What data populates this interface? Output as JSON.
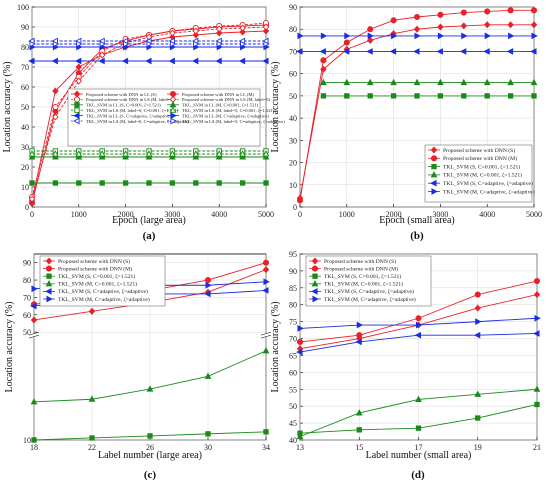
{
  "figure": {
    "panels": [
      {
        "id": "a",
        "label_text": "(a)"
      },
      {
        "id": "b",
        "label_text": "(b)"
      },
      {
        "id": "c",
        "label_text": "(c)"
      },
      {
        "id": "d",
        "label_text": "(d)"
      }
    ]
  },
  "chart_data": [
    {
      "id": "a",
      "type": "line",
      "xlabel": "Epoch (large area)",
      "ylabel": "Location accuracy (%)",
      "xlim": [
        0,
        5000
      ],
      "ylim": [
        0,
        100
      ],
      "xticks": [
        "0",
        "1000",
        "2000",
        "3000",
        "4000",
        "5000"
      ],
      "yticks": [
        "0",
        "10",
        "20",
        "30",
        "40",
        "50",
        "60",
        "70",
        "80",
        "90",
        "100"
      ],
      "grid": true,
      "legend_position": "lower-center",
      "series": [
        {
          "name": "Proposed scheme with DNN in LL (S)",
          "color": "#e8222a",
          "marker": "diamond",
          "dash": false,
          "x": [
            0,
            500,
            1000,
            1500,
            2000,
            2500,
            3000,
            3500,
            4000,
            4500,
            5000
          ],
          "y": [
            3,
            58,
            70,
            76,
            80,
            83,
            85,
            86,
            87,
            87.5,
            88
          ]
        },
        {
          "name": "Proposed scheme with DNN in LL (M)",
          "color": "#e8222a",
          "marker": "circle",
          "dash": false,
          "x": [
            0,
            500,
            1000,
            1500,
            2000,
            2500,
            3000,
            3500,
            4000,
            4500,
            5000
          ],
          "y": [
            2,
            48,
            67,
            79,
            83,
            86,
            88,
            89,
            90,
            90.5,
            91
          ]
        },
        {
          "name": "Proposed scheme with DNN in LS (M, label=0)",
          "color": "#e8222a",
          "marker": "circle-open",
          "dash": true,
          "x": [
            0,
            500,
            1000,
            1500,
            2000,
            2500,
            3000,
            3500,
            4000,
            4500,
            5000
          ],
          "y": [
            5,
            50,
            65,
            78,
            84,
            86,
            88,
            89.5,
            90.5,
            91,
            92
          ]
        },
        {
          "name": "Proposed scheme with DNN in LS (M, label=5)",
          "color": "#e8222a",
          "marker": "diamond-open",
          "dash": true,
          "x": [
            0,
            500,
            1000,
            1500,
            2000,
            2500,
            3000,
            3500,
            4000,
            4500,
            5000
          ],
          "y": [
            4,
            45,
            63,
            76,
            82,
            85,
            87,
            88,
            89,
            89.5,
            90
          ]
        },
        {
          "name": "TKL_SVM in LL (S, C=0.001, ζ=1.521)",
          "color": "#1a8a1a",
          "marker": "square",
          "dash": false,
          "x": [
            0,
            500,
            1000,
            1500,
            2000,
            2500,
            3000,
            3500,
            4000,
            4500,
            5000
          ],
          "y": [
            12,
            12,
            12,
            12,
            12,
            12,
            12,
            12,
            12,
            12,
            12
          ]
        },
        {
          "name": "TKL_SVM in LL (M, C=0.001, ζ=1.521)",
          "color": "#1a8a1a",
          "marker": "triangle",
          "dash": false,
          "x": [
            0,
            500,
            1000,
            1500,
            2000,
            2500,
            3000,
            3500,
            4000,
            4500,
            5000
          ],
          "y": [
            25,
            25,
            25,
            25,
            25,
            25,
            25,
            25,
            25,
            25,
            25
          ]
        },
        {
          "name": "TKL_SVM in LS (M, label=0, C=0.001, ζ=1.521)",
          "color": "#1a8a1a",
          "marker": "square-open",
          "dash": true,
          "x": [
            0,
            500,
            1000,
            1500,
            2000,
            2500,
            3000,
            3500,
            4000,
            4500,
            5000
          ],
          "y": [
            28,
            28,
            28,
            28,
            28,
            28,
            28,
            28,
            28,
            28,
            28
          ]
        },
        {
          "name": "TKL_SVM in LS (M, label=5, C=0.001, ζ=1.521)",
          "color": "#1a8a1a",
          "marker": "triangle-open",
          "dash": true,
          "x": [
            0,
            500,
            1000,
            1500,
            2000,
            2500,
            3000,
            3500,
            4000,
            4500,
            5000
          ],
          "y": [
            26.5,
            26.5,
            26.5,
            26.5,
            26.5,
            26.5,
            26.5,
            26.5,
            26.5,
            26.5,
            26.5
          ]
        },
        {
          "name": "TKL_SVM in LL (S, C=adaptive, ζ=adaptive)",
          "color": "#1a2ee0",
          "marker": "tri-left",
          "dash": false,
          "x": [
            0,
            500,
            1000,
            1500,
            2000,
            2500,
            3000,
            3500,
            4000,
            4500,
            5000
          ],
          "y": [
            73,
            73,
            73,
            73,
            73,
            73,
            73,
            73,
            73,
            73,
            73
          ]
        },
        {
          "name": "TKL_SVM in LL (M, C=adaptive, ζ=adaptive)",
          "color": "#1a2ee0",
          "marker": "tri-right",
          "dash": false,
          "x": [
            0,
            500,
            1000,
            1500,
            2000,
            2500,
            3000,
            3500,
            4000,
            4500,
            5000
          ],
          "y": [
            80,
            80,
            80,
            80,
            80,
            80,
            80,
            80,
            80,
            80,
            80
          ]
        },
        {
          "name": "TKL_SVM in LS (M, label=0, C=adaptive, ζ=adaptive)",
          "color": "#1a2ee0",
          "marker": "tri-left-open",
          "dash": true,
          "x": [
            0,
            500,
            1000,
            1500,
            2000,
            2500,
            3000,
            3500,
            4000,
            4500,
            5000
          ],
          "y": [
            83,
            83,
            83,
            83,
            83,
            83,
            83,
            83,
            83,
            83,
            83
          ]
        },
        {
          "name": "TKL_SVM in LS (M, label=5, C=adaptive, ζ=adaptive)",
          "color": "#1a2ee0",
          "marker": "tri-right-open",
          "dash": true,
          "x": [
            0,
            500,
            1000,
            1500,
            2000,
            2500,
            3000,
            3500,
            4000,
            4500,
            5000
          ],
          "y": [
            81.5,
            81.5,
            81.5,
            81.5,
            81.5,
            81.5,
            81.5,
            81.5,
            81.5,
            81.5,
            81.5
          ]
        }
      ]
    },
    {
      "id": "b",
      "type": "line",
      "xlabel": "Epoch (small area)",
      "ylabel": "Location accuracy (%)",
      "xlim": [
        0,
        5000
      ],
      "ylim": [
        0,
        90
      ],
      "xticks": [
        "0",
        "1000",
        "2000",
        "3000",
        "4000",
        "5000"
      ],
      "yticks": [
        "0",
        "10",
        "20",
        "30",
        "40",
        "50",
        "60",
        "70",
        "80",
        "90"
      ],
      "grid": true,
      "legend_position": "lower-right",
      "series": [
        {
          "name": "Proposed scheme with DNN (S)",
          "color": "#e8222a",
          "marker": "diamond",
          "dash": false,
          "x": [
            0,
            500,
            1000,
            1500,
            2000,
            2500,
            3000,
            3500,
            4000,
            4500,
            5000
          ],
          "y": [
            4,
            62,
            71,
            75,
            78,
            80,
            81,
            81.5,
            82,
            82,
            82
          ]
        },
        {
          "name": "Proposed scheme with DNN (M)",
          "color": "#e8222a",
          "marker": "circle",
          "dash": false,
          "x": [
            0,
            500,
            1000,
            1500,
            2000,
            2500,
            3000,
            3500,
            4000,
            4500,
            5000
          ],
          "y": [
            3,
            66,
            74,
            80,
            84,
            85.5,
            86.5,
            87.5,
            88,
            88.5,
            88.5
          ]
        },
        {
          "name": "TKL_SVM (S, C=0.001, ζ=1.521)",
          "color": "#1a8a1a",
          "marker": "square",
          "dash": false,
          "x": [
            500,
            1000,
            1500,
            2000,
            2500,
            3000,
            3500,
            4000,
            4500,
            5000
          ],
          "y": [
            50,
            50,
            50,
            50,
            50,
            50,
            50,
            50,
            50,
            50
          ]
        },
        {
          "name": "TKL_SVM (M, C=0.001, ζ=1.521)",
          "color": "#1a8a1a",
          "marker": "triangle",
          "dash": false,
          "x": [
            500,
            1000,
            1500,
            2000,
            2500,
            3000,
            3500,
            4000,
            4500,
            5000
          ],
          "y": [
            56,
            56,
            56,
            56,
            56,
            56,
            56,
            56,
            56,
            56
          ]
        },
        {
          "name": "TKL_SVM (S, C=adaptive, ζ=adaptive)",
          "color": "#1a2ee0",
          "marker": "tri-left",
          "dash": false,
          "x": [
            0,
            500,
            1000,
            1500,
            2000,
            2500,
            3000,
            3500,
            4000,
            4500,
            5000
          ],
          "y": [
            70,
            70,
            70,
            70,
            70,
            70,
            70,
            70,
            70,
            70,
            70
          ]
        },
        {
          "name": "TKL_SVM (M, C=adaptive, ζ=adaptive)",
          "color": "#1a2ee0",
          "marker": "tri-right",
          "dash": false,
          "x": [
            0,
            500,
            1000,
            1500,
            2000,
            2500,
            3000,
            3500,
            4000,
            4500,
            5000
          ],
          "y": [
            77,
            77,
            77,
            77,
            77,
            77,
            77,
            77,
            77,
            77,
            77
          ]
        }
      ]
    },
    {
      "id": "c",
      "type": "line",
      "xlabel": "Label number (large area)",
      "ylabel": "Location accuracy (%)",
      "xlim": [
        18,
        34
      ],
      "ylim": [
        10,
        95
      ],
      "axis_break": {
        "at": 50
      },
      "xticks": [
        "18",
        "22",
        "26",
        "30",
        "34"
      ],
      "yticks": [
        "10",
        "50",
        "60",
        "70",
        "80",
        "90"
      ],
      "grid": true,
      "legend_position": "top-left",
      "series": [
        {
          "name": "Proposed scheme with DNN (S)",
          "color": "#e8222a",
          "marker": "diamond",
          "dash": false,
          "x": [
            18,
            22,
            26,
            30,
            34
          ],
          "y": [
            57,
            62,
            67,
            73,
            86
          ]
        },
        {
          "name": "Proposed scheme with DNN (M)",
          "color": "#e8222a",
          "marker": "circle",
          "dash": false,
          "x": [
            18,
            22,
            26,
            30,
            34
          ],
          "y": [
            66,
            70,
            74,
            80,
            90
          ]
        },
        {
          "name": "TKL_SVM (S, C=0.001, ζ=1.521)",
          "color": "#1a8a1a",
          "marker": "square",
          "dash": false,
          "x": [
            18,
            22,
            26,
            30,
            34
          ],
          "y": [
            10,
            10.8,
            11.6,
            12.4,
            13.2
          ]
        },
        {
          "name": "TKL_SVM (M, C=0.001, ζ=1.521)",
          "color": "#1a8a1a",
          "marker": "triangle",
          "dash": false,
          "x": [
            18,
            22,
            26,
            30,
            34
          ],
          "y": [
            25,
            26,
            30,
            35,
            45
          ]
        },
        {
          "name": "TKL_SVM (S, C=adaptive, ζ=adaptive)",
          "color": "#1a2ee0",
          "marker": "tri-left",
          "dash": false,
          "x": [
            18,
            22,
            26,
            30,
            34
          ],
          "y": [
            65,
            69,
            72,
            72,
            74
          ]
        },
        {
          "name": "TKL_SVM (M, C=adaptive, ζ=adaptive)",
          "color": "#1a2ee0",
          "marker": "tri-right",
          "dash": false,
          "x": [
            18,
            22,
            26,
            30,
            34
          ],
          "y": [
            75,
            76,
            77,
            77,
            79
          ]
        }
      ]
    },
    {
      "id": "d",
      "type": "line",
      "xlabel": "Label number (small area)",
      "ylabel": "Location accuracy (%)",
      "xlim": [
        13,
        21
      ],
      "ylim": [
        40,
        95
      ],
      "xticks": [
        "13",
        "15",
        "17",
        "19",
        "21"
      ],
      "yticks": [
        "40",
        "45",
        "50",
        "55",
        "60",
        "65",
        "70",
        "75",
        "80",
        "85",
        "90",
        "95"
      ],
      "grid": true,
      "legend_position": "top-left",
      "series": [
        {
          "name": "Proposed scheme with DNN (S)",
          "color": "#e8222a",
          "marker": "diamond",
          "dash": false,
          "x": [
            13,
            15,
            17,
            19,
            21
          ],
          "y": [
            67,
            70,
            74,
            79,
            83
          ]
        },
        {
          "name": "Proposed scheme with DNN (M)",
          "color": "#e8222a",
          "marker": "circle",
          "dash": false,
          "x": [
            13,
            15,
            17,
            19,
            21
          ],
          "y": [
            69,
            71,
            76,
            83,
            87
          ]
        },
        {
          "name": "TKL_SVM (S, C=0.001, ζ=1.521)",
          "color": "#1a8a1a",
          "marker": "square",
          "dash": false,
          "x": [
            13,
            15,
            17,
            19,
            21
          ],
          "y": [
            42,
            43,
            43.5,
            46.5,
            50.5
          ]
        },
        {
          "name": "TKL_SVM (M, C=0.001, ζ=1.521)",
          "color": "#1a8a1a",
          "marker": "triangle",
          "dash": false,
          "x": [
            13,
            15,
            17,
            19,
            21
          ],
          "y": [
            41,
            48,
            52,
            53.5,
            55
          ]
        },
        {
          "name": "TKL_SVM (S, C=adaptive, ζ=adaptive)",
          "color": "#1a2ee0",
          "marker": "tri-left",
          "dash": false,
          "x": [
            13,
            15,
            17,
            19,
            21
          ],
          "y": [
            66,
            69,
            71,
            71,
            71.5
          ]
        },
        {
          "name": "TKL_SVM (M, C=adaptive, ζ=adaptive)",
          "color": "#1a2ee0",
          "marker": "tri-right",
          "dash": false,
          "x": [
            13,
            15,
            17,
            19,
            21
          ],
          "y": [
            73,
            74,
            74,
            75,
            76
          ]
        }
      ]
    }
  ]
}
